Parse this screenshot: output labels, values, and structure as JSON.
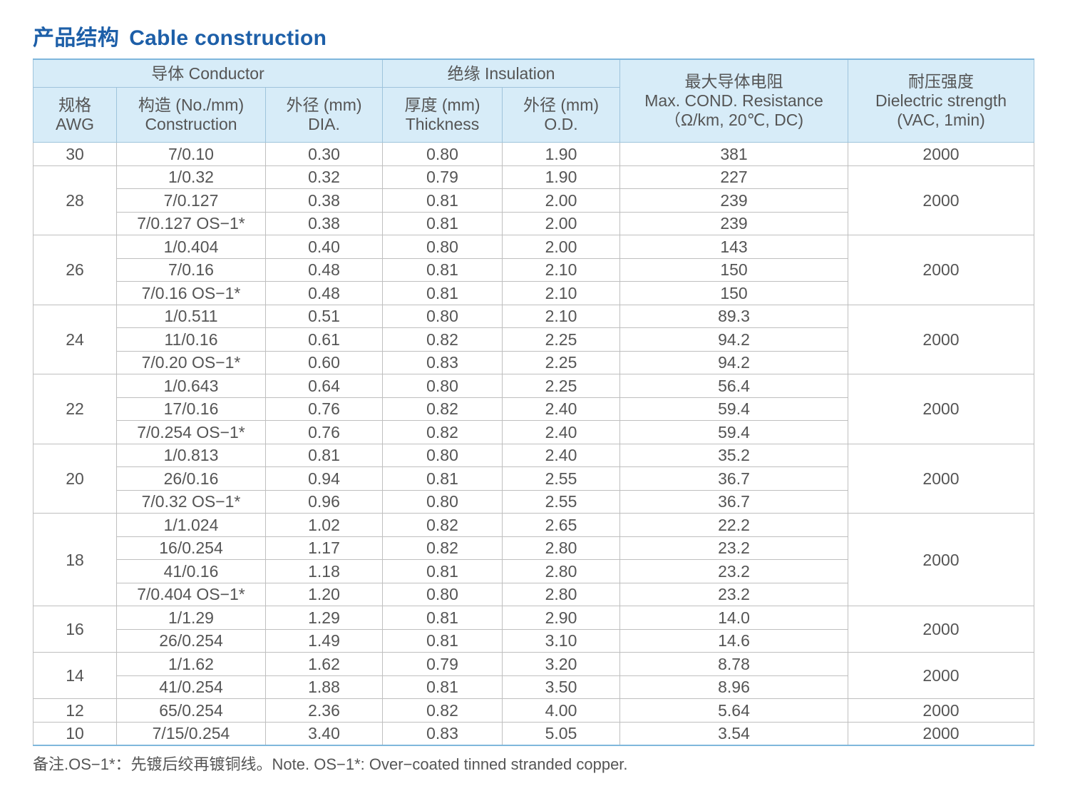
{
  "title": {
    "cn": "产品结构",
    "en": "Cable construction"
  },
  "headers": {
    "conductor": "导体 Conductor",
    "insulation": "绝缘 Insulation",
    "resistance": [
      "最大导体电阻",
      "Max. COND. Resistance",
      "（Ω/km, 20℃, DC)"
    ],
    "dielectric": [
      "耐压强度",
      "Dielectric strength",
      "(VAC, 1min)"
    ],
    "awg": [
      "规格",
      "AWG"
    ],
    "construction": [
      "构造 (No./mm)",
      "Construction"
    ],
    "dia": [
      "外径 (mm)",
      "DIA."
    ],
    "thickness": [
      "厚度 (mm)",
      "Thickness"
    ],
    "od": [
      "外径 (mm)",
      "O.D."
    ]
  },
  "groups": [
    {
      "awg": "30",
      "voltage": "2000",
      "rows": [
        {
          "construction": "7/0.10",
          "dia": "0.30",
          "thickness": "0.80",
          "od": "1.90",
          "resistance": "381"
        }
      ]
    },
    {
      "awg": "28",
      "voltage": "2000",
      "rows": [
        {
          "construction": "1/0.32",
          "dia": "0.32",
          "thickness": "0.79",
          "od": "1.90",
          "resistance": "227"
        },
        {
          "construction": "7/0.127",
          "dia": "0.38",
          "thickness": "0.81",
          "od": "2.00",
          "resistance": "239"
        },
        {
          "construction": "7/0.127 OS−1*",
          "dia": "0.38",
          "thickness": "0.81",
          "od": "2.00",
          "resistance": "239"
        }
      ]
    },
    {
      "awg": "26",
      "voltage": "2000",
      "rows": [
        {
          "construction": "1/0.404",
          "dia": "0.40",
          "thickness": "0.80",
          "od": "2.00",
          "resistance": "143"
        },
        {
          "construction": "7/0.16",
          "dia": "0.48",
          "thickness": "0.81",
          "od": "2.10",
          "resistance": "150"
        },
        {
          "construction": "7/0.16 OS−1*",
          "dia": "0.48",
          "thickness": "0.81",
          "od": "2.10",
          "resistance": "150"
        }
      ]
    },
    {
      "awg": "24",
      "voltage": "2000",
      "rows": [
        {
          "construction": "1/0.511",
          "dia": "0.51",
          "thickness": "0.80",
          "od": "2.10",
          "resistance": "89.3"
        },
        {
          "construction": "11/0.16",
          "dia": "0.61",
          "thickness": "0.82",
          "od": "2.25",
          "resistance": "94.2"
        },
        {
          "construction": "7/0.20 OS−1*",
          "dia": "0.60",
          "thickness": "0.83",
          "od": "2.25",
          "resistance": "94.2"
        }
      ]
    },
    {
      "awg": "22",
      "voltage": "2000",
      "rows": [
        {
          "construction": "1/0.643",
          "dia": "0.64",
          "thickness": "0.80",
          "od": "2.25",
          "resistance": "56.4"
        },
        {
          "construction": "17/0.16",
          "dia": "0.76",
          "thickness": "0.82",
          "od": "2.40",
          "resistance": "59.4"
        },
        {
          "construction": "7/0.254 OS−1*",
          "dia": "0.76",
          "thickness": "0.82",
          "od": "2.40",
          "resistance": "59.4"
        }
      ]
    },
    {
      "awg": "20",
      "voltage": "2000",
      "rows": [
        {
          "construction": "1/0.813",
          "dia": "0.81",
          "thickness": "0.80",
          "od": "2.40",
          "resistance": "35.2"
        },
        {
          "construction": "26/0.16",
          "dia": "0.94",
          "thickness": "0.81",
          "od": "2.55",
          "resistance": "36.7"
        },
        {
          "construction": "7/0.32 OS−1*",
          "dia": "0.96",
          "thickness": "0.80",
          "od": "2.55",
          "resistance": "36.7"
        }
      ]
    },
    {
      "awg": "18",
      "voltage": "2000",
      "rows": [
        {
          "construction": "1/1.024",
          "dia": "1.02",
          "thickness": "0.82",
          "od": "2.65",
          "resistance": "22.2"
        },
        {
          "construction": "16/0.254",
          "dia": "1.17",
          "thickness": "0.82",
          "od": "2.80",
          "resistance": "23.2"
        },
        {
          "construction": "41/0.16",
          "dia": "1.18",
          "thickness": "0.81",
          "od": "2.80",
          "resistance": "23.2"
        },
        {
          "construction": "7/0.404 OS−1*",
          "dia": "1.20",
          "thickness": "0.80",
          "od": "2.80",
          "resistance": "23.2"
        }
      ]
    },
    {
      "awg": "16",
      "voltage": "2000",
      "rows": [
        {
          "construction": "1/1.29",
          "dia": "1.29",
          "thickness": "0.81",
          "od": "2.90",
          "resistance": "14.0"
        },
        {
          "construction": "26/0.254",
          "dia": "1.49",
          "thickness": "0.81",
          "od": "3.10",
          "resistance": "14.6"
        }
      ]
    },
    {
      "awg": "14",
      "voltage": "2000",
      "rows": [
        {
          "construction": "1/1.62",
          "dia": "1.62",
          "thickness": "0.79",
          "od": "3.20",
          "resistance": "8.78"
        },
        {
          "construction": "41/0.254",
          "dia": "1.88",
          "thickness": "0.81",
          "od": "3.50",
          "resistance": "8.96"
        }
      ]
    },
    {
      "awg": "12",
      "voltage": "2000",
      "rows": [
        {
          "construction": "65/0.254",
          "dia": "2.36",
          "thickness": "0.82",
          "od": "4.00",
          "resistance": "5.64"
        }
      ]
    },
    {
      "awg": "10",
      "voltage": "2000",
      "rows": [
        {
          "construction": "7/15/0.254",
          "dia": "3.40",
          "thickness": "0.83",
          "od": "5.05",
          "resistance": "3.54"
        }
      ]
    }
  ],
  "note": "备注.OS−1*：先镀后绞再镀铜线。Note. OS−1*: Over−coated tinned stranded copper.",
  "colors": {
    "title": "#1d5fa8",
    "header_bg": "#d7ecf8",
    "accent_border": "#7fb7dc",
    "text": "#555555"
  }
}
